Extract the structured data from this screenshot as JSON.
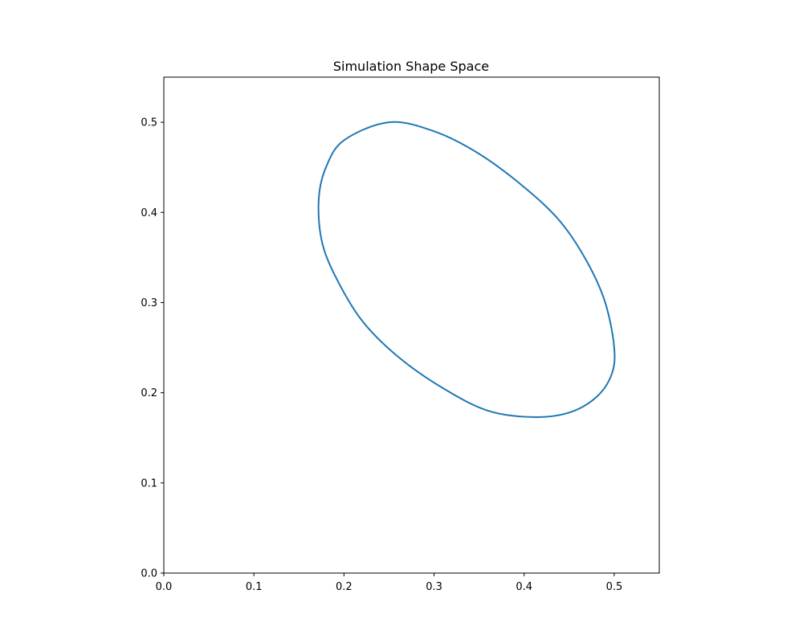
{
  "chart_data": {
    "type": "line",
    "title": "Simulation Shape Space",
    "xlabel": "",
    "ylabel": "",
    "xlim": [
      0,
      0.55
    ],
    "ylim": [
      0,
      0.55
    ],
    "xticks": [
      0.0,
      0.1,
      0.2,
      0.3,
      0.4,
      0.5
    ],
    "xtick_labels": [
      "0.0",
      "0.1",
      "0.2",
      "0.3",
      "0.4",
      "0.5"
    ],
    "yticks": [
      0.0,
      0.1,
      0.2,
      0.3,
      0.4,
      0.5
    ],
    "ytick_labels": [
      "0.0",
      "0.1",
      "0.2",
      "0.3",
      "0.4",
      "0.5"
    ],
    "grid": false,
    "series": [
      {
        "color": "#1f77b4",
        "shape": "closed ellipse",
        "x": [
          0.25,
          0.3,
          0.35,
          0.4,
          0.44,
          0.47,
          0.49,
          0.5,
          0.497,
          0.48,
          0.45,
          0.41,
          0.36,
          0.31,
          0.26,
          0.22,
          0.19,
          0.175,
          0.172,
          0.18,
          0.2,
          0.25
        ],
        "y": [
          0.5,
          0.49,
          0.465,
          0.428,
          0.39,
          0.345,
          0.3,
          0.25,
          0.22,
          0.195,
          0.178,
          0.173,
          0.18,
          0.205,
          0.24,
          0.28,
          0.33,
          0.37,
          0.415,
          0.45,
          0.48,
          0.5
        ]
      }
    ]
  }
}
